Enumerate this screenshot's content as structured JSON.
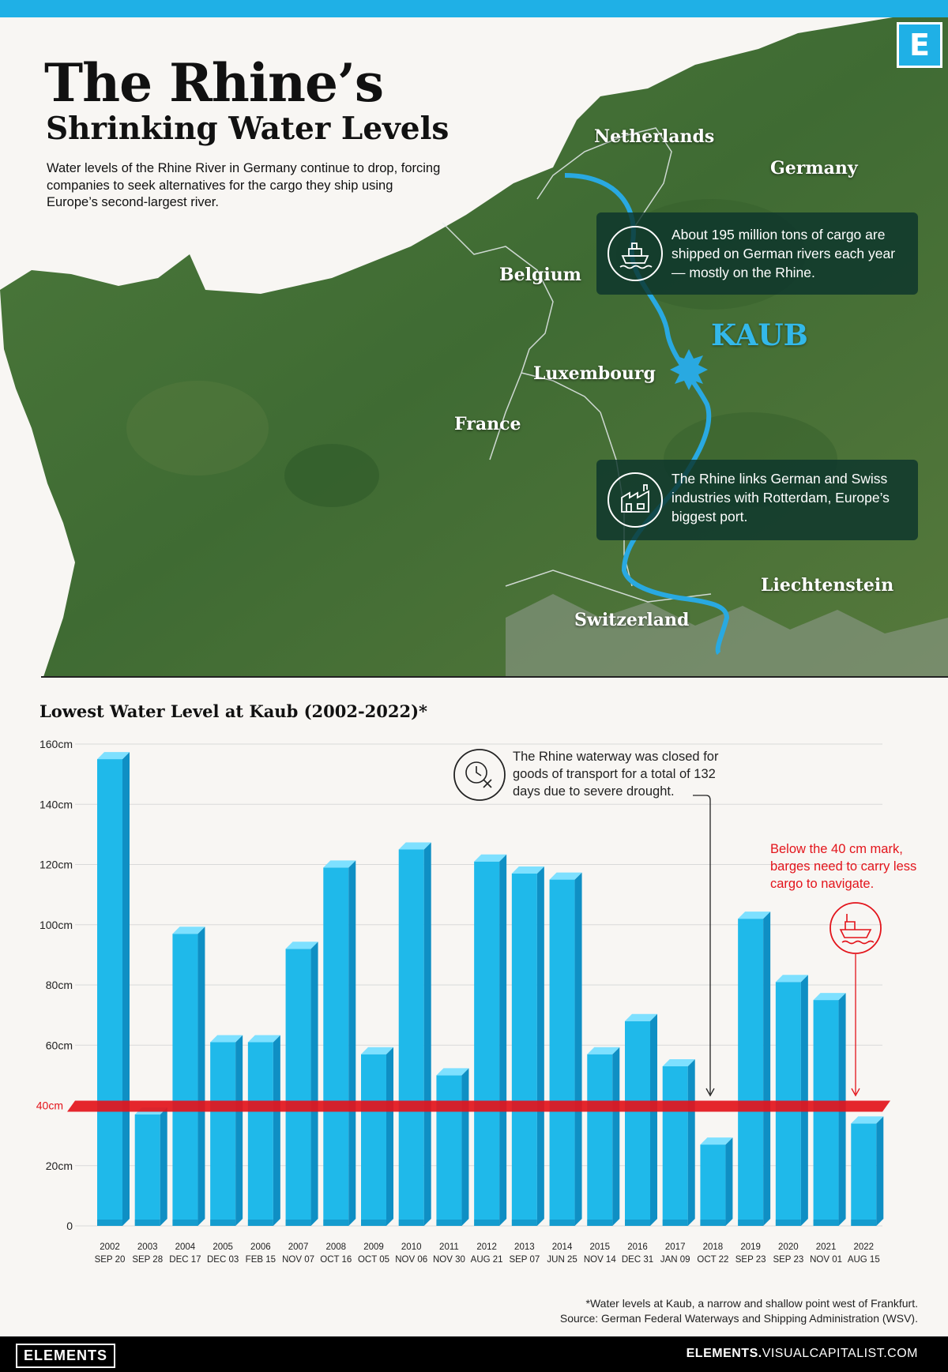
{
  "header": {
    "title_line1": "The Rhine’s",
    "title_line2": "Shrinking Water Levels",
    "subtitle": "Water levels of the Rhine River in Germany continue to drop, forcing companies to seek alternatives for the cargo they ship using Europe’s second-largest river.",
    "logo_letter": "E"
  },
  "map": {
    "countries": {
      "netherlands": "Netherlands",
      "germany": "Germany",
      "belgium": "Belgium",
      "luxembourg": "Luxembourg",
      "france": "France",
      "liechtenstein": "Liechtenstein",
      "switzerland": "Switzerland"
    },
    "city": "KAUB",
    "info_cargo": "About 195 million tons of  cargo are shipped on German rivers each year — mostly on the Rhine.",
    "info_industry": "The Rhine links German and Swiss industries with Rotterdam, Europe’s biggest port.",
    "river_color": "#29a9e1"
  },
  "chart_data": {
    "type": "bar",
    "title": "Lowest Water Level at Kaub (2002-2022)*",
    "years": [
      "2002",
      "2003",
      "2004",
      "2005",
      "2006",
      "2007",
      "2008",
      "2009",
      "2010",
      "2011",
      "2012",
      "2013",
      "2014",
      "2015",
      "2016",
      "2017",
      "2018",
      "2019",
      "2020",
      "2021",
      "2022"
    ],
    "dates": [
      "SEP 20",
      "SEP 28",
      "DEC 17",
      "DEC 03",
      "FEB 15",
      "NOV 07",
      "OCT 16",
      "OCT 05",
      "NOV 06",
      "NOV 30",
      "AUG 21",
      "SEP 07",
      "JUN 25",
      "NOV 14",
      "DEC 31",
      "JAN 09",
      "OCT 22",
      "SEP 23",
      "SEP 23",
      "NOV 01",
      "AUG 15"
    ],
    "values": [
      155,
      37,
      97,
      61,
      61,
      92,
      119,
      57,
      125,
      50,
      121,
      117,
      115,
      57,
      68,
      53,
      27,
      102,
      81,
      75,
      34
    ],
    "y_ticks": [
      "160cm",
      "140cm",
      "120cm",
      "100cm",
      "80cm",
      "60cm",
      "40cm",
      "20cm",
      "0"
    ],
    "ylim": [
      0,
      160
    ],
    "threshold_value": 40,
    "threshold_label": "40cm",
    "bar_color": "#1fb9ea",
    "threshold_color": "#e3141b",
    "grid": true
  },
  "annotations": {
    "closed": "The Rhine waterway was closed for goods of transport for a total of 132 days due to severe drought.",
    "below_40": "Below the 40 cm  mark, barges need to carry less cargo to navigate."
  },
  "footnote": {
    "line1": "*Water levels at Kaub, a narrow and shallow point west of Frankfurt.",
    "line2": "Source: German Federal Waterways and Shipping Administration (WSV)."
  },
  "footer": {
    "brand": "ELEMENTS",
    "url_bold": "ELEMENTS.",
    "url_rest": "VISUALCAPITALIST.COM"
  }
}
